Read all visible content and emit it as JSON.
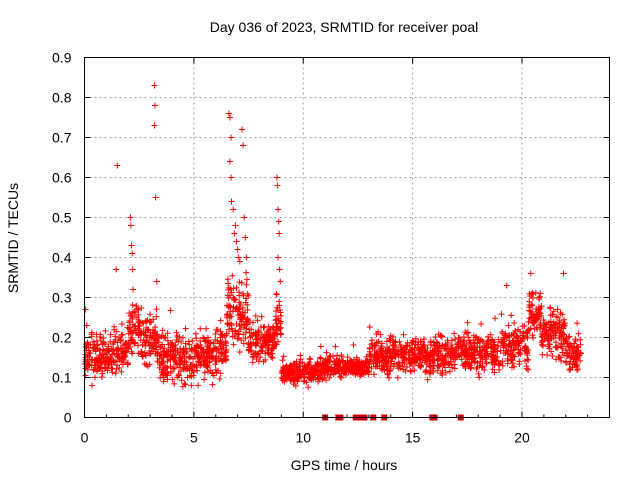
{
  "chart_data": {
    "type": "scatter",
    "title": "Day 036 of 2023, SRMTID for receiver poal",
    "xlabel": "GPS time / hours",
    "ylabel": "SRMTID / TECUs",
    "xlim": [
      0,
      24
    ],
    "ylim": [
      0,
      0.9
    ],
    "xticks": [
      "0",
      "5",
      "10",
      "15",
      "20"
    ],
    "yticks": [
      "0",
      "0.1",
      "0.2",
      "0.3",
      "0.4",
      "0.5",
      "0.6",
      "0.7",
      "0.8",
      "0.9"
    ],
    "grid": true,
    "marker": "+",
    "color": "#ff0000",
    "segments": [
      {
        "x0": 0.0,
        "x1": 1.5,
        "lo": 0.07,
        "hi": 0.24
      },
      {
        "x0": 1.5,
        "x1": 2.0,
        "lo": 0.1,
        "hi": 0.22
      },
      {
        "x0": 2.0,
        "x1": 2.6,
        "lo": 0.14,
        "hi": 0.3
      },
      {
        "x0": 2.6,
        "x1": 3.4,
        "lo": 0.1,
        "hi": 0.28
      },
      {
        "x0": 3.4,
        "x1": 5.0,
        "lo": 0.06,
        "hi": 0.24
      },
      {
        "x0": 5.0,
        "x1": 6.0,
        "lo": 0.06,
        "hi": 0.24
      },
      {
        "x0": 6.0,
        "x1": 6.5,
        "lo": 0.08,
        "hi": 0.26
      },
      {
        "x0": 6.5,
        "x1": 7.5,
        "lo": 0.14,
        "hi": 0.38
      },
      {
        "x0": 7.5,
        "x1": 8.7,
        "lo": 0.12,
        "hi": 0.26
      },
      {
        "x0": 8.7,
        "x1": 9.0,
        "lo": 0.16,
        "hi": 0.33
      },
      {
        "x0": 9.0,
        "x1": 11.0,
        "lo": 0.07,
        "hi": 0.16
      },
      {
        "x0": 11.0,
        "x1": 13.0,
        "lo": 0.09,
        "hi": 0.16
      },
      {
        "x0": 13.0,
        "x1": 15.0,
        "lo": 0.09,
        "hi": 0.22
      },
      {
        "x0": 15.0,
        "x1": 17.0,
        "lo": 0.09,
        "hi": 0.22
      },
      {
        "x0": 17.0,
        "x1": 19.0,
        "lo": 0.09,
        "hi": 0.24
      },
      {
        "x0": 19.0,
        "x1": 20.3,
        "lo": 0.1,
        "hi": 0.26
      },
      {
        "x0": 20.3,
        "x1": 20.9,
        "lo": 0.18,
        "hi": 0.34
      },
      {
        "x0": 20.9,
        "x1": 22.0,
        "lo": 0.12,
        "hi": 0.29
      },
      {
        "x0": 22.0,
        "x1": 22.7,
        "lo": 0.1,
        "hi": 0.22
      }
    ],
    "spikes": [
      {
        "x": 0.05,
        "y": 0.27
      },
      {
        "x": 0.1,
        "y": 0.23
      },
      {
        "x": 1.5,
        "y": 0.63
      },
      {
        "x": 1.45,
        "y": 0.37
      },
      {
        "x": 2.1,
        "y": 0.5
      },
      {
        "x": 2.12,
        "y": 0.48
      },
      {
        "x": 2.15,
        "y": 0.43
      },
      {
        "x": 2.18,
        "y": 0.41
      },
      {
        "x": 2.2,
        "y": 0.37
      },
      {
        "x": 2.22,
        "y": 0.32
      },
      {
        "x": 3.2,
        "y": 0.83
      },
      {
        "x": 3.22,
        "y": 0.78
      },
      {
        "x": 3.2,
        "y": 0.73
      },
      {
        "x": 3.25,
        "y": 0.55
      },
      {
        "x": 3.3,
        "y": 0.34
      },
      {
        "x": 6.6,
        "y": 0.76
      },
      {
        "x": 6.65,
        "y": 0.75
      },
      {
        "x": 6.7,
        "y": 0.7
      },
      {
        "x": 6.65,
        "y": 0.64
      },
      {
        "x": 6.7,
        "y": 0.6
      },
      {
        "x": 6.72,
        "y": 0.54
      },
      {
        "x": 6.8,
        "y": 0.52
      },
      {
        "x": 6.9,
        "y": 0.48
      },
      {
        "x": 6.95,
        "y": 0.44
      },
      {
        "x": 7.0,
        "y": 0.42
      },
      {
        "x": 7.05,
        "y": 0.4
      },
      {
        "x": 7.1,
        "y": 0.39
      },
      {
        "x": 7.2,
        "y": 0.72
      },
      {
        "x": 7.25,
        "y": 0.68
      },
      {
        "x": 7.3,
        "y": 0.5
      },
      {
        "x": 7.35,
        "y": 0.45
      },
      {
        "x": 7.4,
        "y": 0.4
      },
      {
        "x": 6.85,
        "y": 0.46
      },
      {
        "x": 8.8,
        "y": 0.6
      },
      {
        "x": 8.82,
        "y": 0.58
      },
      {
        "x": 8.85,
        "y": 0.52
      },
      {
        "x": 8.88,
        "y": 0.49
      },
      {
        "x": 8.9,
        "y": 0.46
      },
      {
        "x": 8.85,
        "y": 0.4
      },
      {
        "x": 8.92,
        "y": 0.37
      },
      {
        "x": 8.95,
        "y": 0.34
      },
      {
        "x": 8.9,
        "y": 0.29
      },
      {
        "x": 20.4,
        "y": 0.36
      },
      {
        "x": 21.9,
        "y": 0.36
      },
      {
        "x": 19.3,
        "y": 0.33
      }
    ],
    "gap_markers_x": [
      11.0,
      11.6,
      11.7,
      12.4,
      12.6,
      12.7,
      12.8,
      13.2,
      13.7,
      15.9,
      16.0,
      17.2
    ]
  }
}
